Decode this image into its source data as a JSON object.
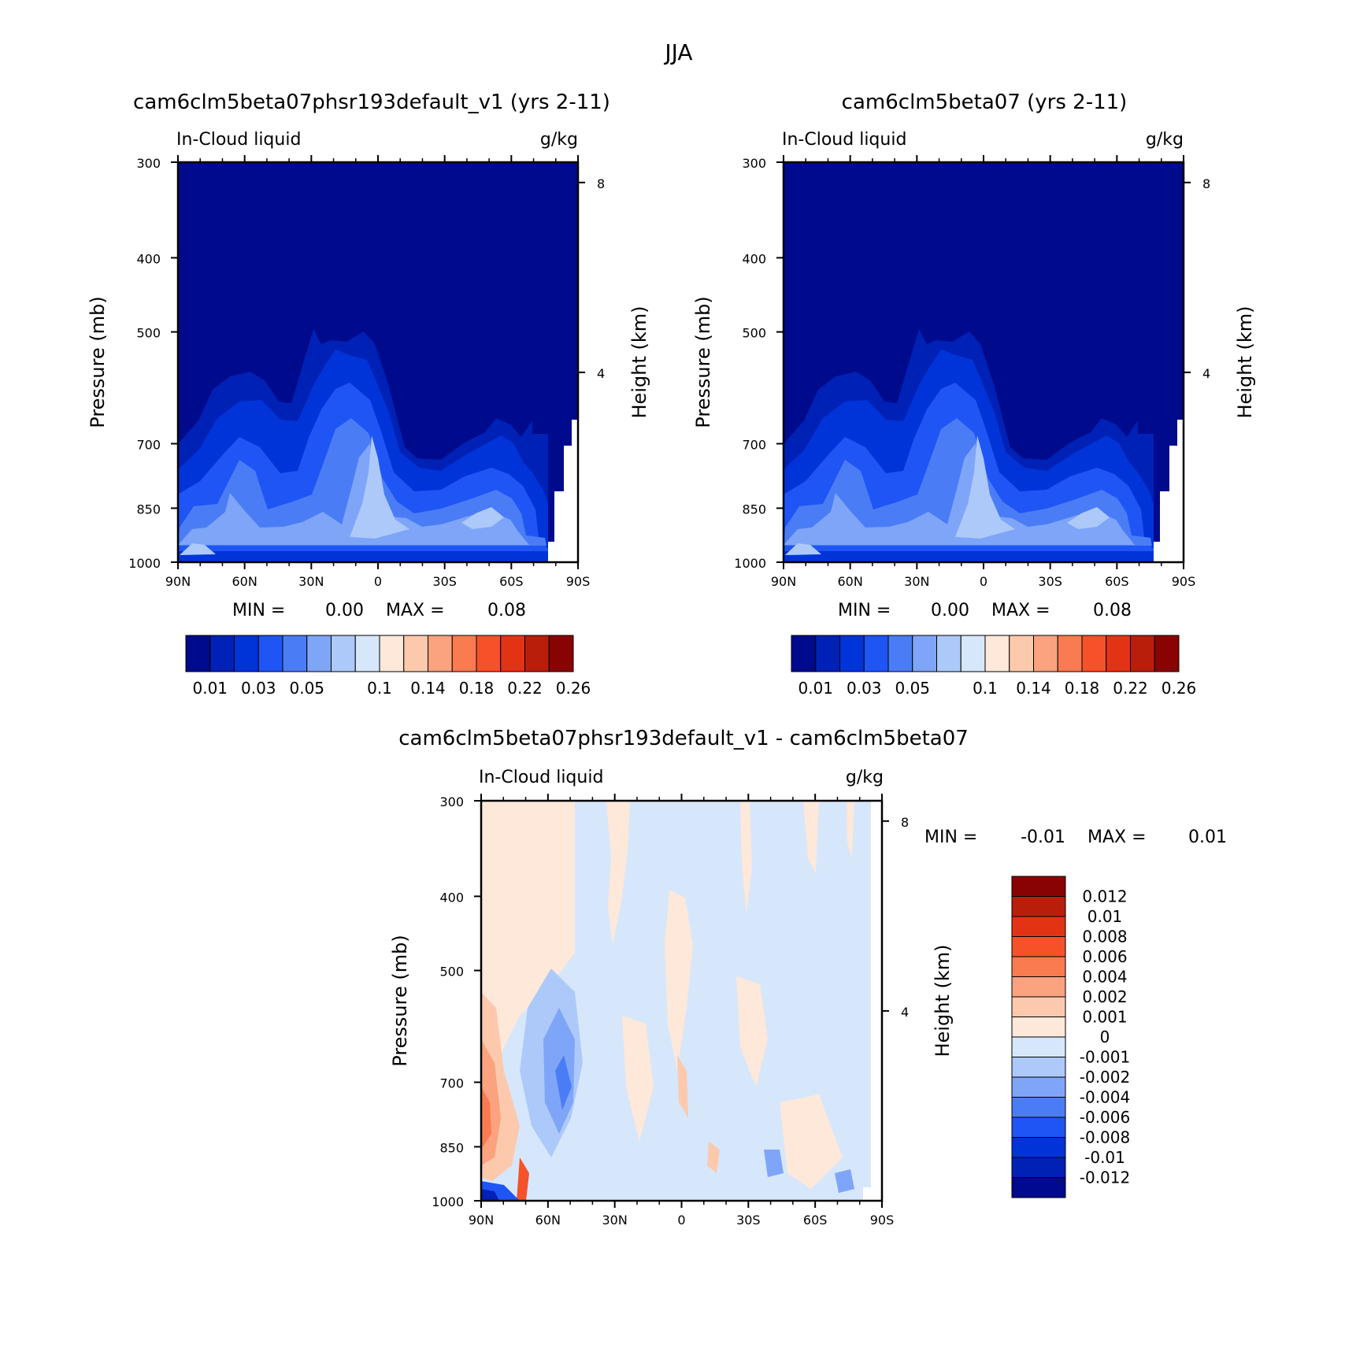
{
  "figure_title": "JJA",
  "chart_data": [
    {
      "type": "heatmap",
      "title": "cam6clm5beta07phsr193default_v1 (yrs 2-11)",
      "variable": "In-Cloud liquid",
      "units": "g/kg",
      "xlabel": "",
      "ylabel": "Pressure (mb)",
      "y2label": "Height (km)",
      "x_ticks": [
        "90N",
        "60N",
        "30N",
        "0",
        "30S",
        "60S",
        "90S"
      ],
      "y_ticks": [
        "300",
        "400",
        "500",
        "700",
        "850",
        "1000"
      ],
      "y2_ticks": [
        "8",
        "4"
      ],
      "min_label": "MIN =",
      "min_value": "0.00",
      "max_label": "MAX =",
      "max_value": "0.08",
      "colorbar_labels": [
        "0.01",
        "0.03",
        "0.05",
        "0.1",
        "0.14",
        "0.18",
        "0.22",
        "0.26"
      ],
      "colorbar_levels": [
        0.01,
        0.02,
        0.03,
        0.04,
        0.05,
        0.06,
        0.08,
        0.1,
        0.12,
        0.14,
        0.16,
        0.18,
        0.2,
        0.22,
        0.24,
        0.26
      ],
      "colors": [
        "#000a8c",
        "#0021b5",
        "#0034d9",
        "#1f55f5",
        "#4a7df5",
        "#7ea5f7",
        "#adc9fa",
        "#d6e7fc",
        "#fde8d9",
        "#fcc9ad",
        "#fba27e",
        "#f97b4f",
        "#f5522a",
        "#e33315",
        "#b91e0a",
        "#8a0303"
      ],
      "ylim_mb": [
        1000,
        300
      ],
      "xlim_lat": [
        90,
        -90
      ]
    },
    {
      "type": "heatmap",
      "title": "cam6clm5beta07 (yrs 2-11)",
      "variable": "In-Cloud liquid",
      "units": "g/kg",
      "xlabel": "",
      "ylabel": "Pressure (mb)",
      "y2label": "Height (km)",
      "x_ticks": [
        "90N",
        "60N",
        "30N",
        "0",
        "30S",
        "60S",
        "90S"
      ],
      "y_ticks": [
        "300",
        "400",
        "500",
        "700",
        "850",
        "1000"
      ],
      "y2_ticks": [
        "8",
        "4"
      ],
      "min_label": "MIN =",
      "min_value": "0.00",
      "max_label": "MAX =",
      "max_value": "0.08",
      "colorbar_labels": [
        "0.01",
        "0.03",
        "0.05",
        "0.1",
        "0.14",
        "0.18",
        "0.22",
        "0.26"
      ],
      "colorbar_levels": [
        0.01,
        0.02,
        0.03,
        0.04,
        0.05,
        0.06,
        0.08,
        0.1,
        0.12,
        0.14,
        0.16,
        0.18,
        0.2,
        0.22,
        0.24,
        0.26
      ],
      "colors": [
        "#000a8c",
        "#0021b5",
        "#0034d9",
        "#1f55f5",
        "#4a7df5",
        "#7ea5f7",
        "#adc9fa",
        "#d6e7fc",
        "#fde8d9",
        "#fcc9ad",
        "#fba27e",
        "#f97b4f",
        "#f5522a",
        "#e33315",
        "#b91e0a",
        "#8a0303"
      ],
      "ylim_mb": [
        1000,
        300
      ],
      "xlim_lat": [
        90,
        -90
      ]
    },
    {
      "type": "heatmap",
      "title": "cam6clm5beta07phsr193default_v1 - cam6clm5beta07",
      "variable": "In-Cloud liquid",
      "units": "g/kg",
      "xlabel": "",
      "ylabel": "Pressure (mb)",
      "y2label": "Height (km)",
      "x_ticks": [
        "90N",
        "60N",
        "30N",
        "0",
        "30S",
        "60S",
        "90S"
      ],
      "y_ticks": [
        "300",
        "400",
        "500",
        "700",
        "850",
        "1000"
      ],
      "y2_ticks": [
        "8",
        "4"
      ],
      "min_label": "MIN =",
      "min_value": "-0.01",
      "max_label": "MAX =",
      "max_value": "0.01",
      "colorbar_labels": [
        "0.012",
        "0.01",
        "0.008",
        "0.006",
        "0.004",
        "0.002",
        "0.001",
        "0",
        "-0.001",
        "-0.002",
        "-0.004",
        "-0.006",
        "-0.008",
        "-0.01",
        "-0.012"
      ],
      "colors": [
        "#8a0303",
        "#b91e0a",
        "#e33315",
        "#f5522a",
        "#f97b4f",
        "#fba27e",
        "#fcc9ad",
        "#fde8d9",
        "#d6e7fc",
        "#adc9fa",
        "#7ea5f7",
        "#4a7df5",
        "#1f55f5",
        "#0034d9",
        "#0021b5",
        "#000a8c"
      ],
      "ylim_mb": [
        1000,
        300
      ],
      "xlim_lat": [
        90,
        -90
      ]
    }
  ]
}
